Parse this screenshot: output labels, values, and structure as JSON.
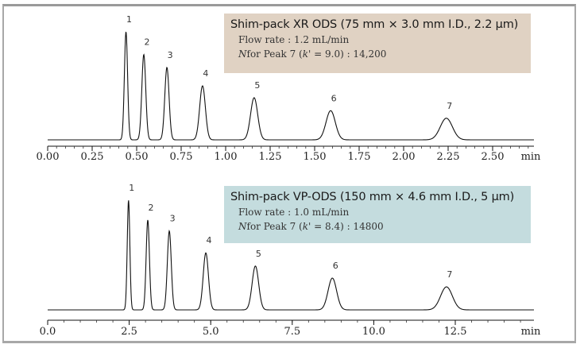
{
  "chart_data": [
    {
      "type": "line",
      "title": "Shim-pack XR ODS (75 mm × 3.0 mm I.D., 2.2 µm)",
      "info_lines": {
        "flow_rate": "Flow rate : 1.2 mL/min",
        "n_prefix": "N",
        "n_mid": "for Peak 7 (",
        "k_symbol": "k'",
        "n_suffix": " = 9.0) : 14,200"
      },
      "xlabel": "min",
      "xlim": [
        0.0,
        2.6
      ],
      "x_ticks": [
        "0.00",
        "0.25",
        "0.50",
        "0.75",
        "1.00",
        "1.25",
        "1.50",
        "1.75",
        "2.00",
        "2.25",
        "2.50"
      ],
      "x_tick_values": [
        0.0,
        0.25,
        0.5,
        0.75,
        1.0,
        1.25,
        1.5,
        1.75,
        2.0,
        2.25,
        2.5
      ],
      "minor_tick_step": 0.05,
      "peaks": [
        {
          "label": "1",
          "rt": 0.44,
          "height": 1.0,
          "width": 0.009
        },
        {
          "label": "2",
          "rt": 0.54,
          "height": 0.79,
          "width": 0.011
        },
        {
          "label": "3",
          "rt": 0.67,
          "height": 0.67,
          "width": 0.012
        },
        {
          "label": "4",
          "rt": 0.87,
          "height": 0.5,
          "width": 0.016
        },
        {
          "label": "5",
          "rt": 1.16,
          "height": 0.39,
          "width": 0.02
        },
        {
          "label": "6",
          "rt": 1.59,
          "height": 0.27,
          "width": 0.026
        },
        {
          "label": "7",
          "rt": 2.24,
          "height": 0.2,
          "width": 0.034
        }
      ],
      "grid": false,
      "box_color": "#e0d2c3"
    },
    {
      "type": "line",
      "title": "Shim-pack VP-ODS (150 mm × 4.6 mm I.D., 5 µm)",
      "info_lines": {
        "flow_rate": "Flow rate : 1.0 mL/min",
        "n_prefix": "N",
        "n_mid": "for Peak 7 (",
        "k_symbol": "k'",
        "n_suffix": " = 8.4) : 14800"
      },
      "xlabel": "min",
      "xlim": [
        0.0,
        15.0
      ],
      "x_ticks": [
        "0.0",
        "2.5",
        "5.0",
        "7.5",
        "10.0",
        "12.5"
      ],
      "x_tick_values": [
        0.0,
        2.5,
        5.0,
        7.5,
        10.0,
        12.5
      ],
      "minor_tick_step": 0.5,
      "peaks": [
        {
          "label": "1",
          "rt": 2.48,
          "height": 1.0,
          "width": 0.04
        },
        {
          "label": "2",
          "rt": 3.07,
          "height": 0.82,
          "width": 0.05
        },
        {
          "label": "3",
          "rt": 3.73,
          "height": 0.72,
          "width": 0.06
        },
        {
          "label": "4",
          "rt": 4.85,
          "height": 0.52,
          "width": 0.08
        },
        {
          "label": "5",
          "rt": 6.37,
          "height": 0.4,
          "width": 0.1
        },
        {
          "label": "6",
          "rt": 8.73,
          "height": 0.29,
          "width": 0.13
        },
        {
          "label": "7",
          "rt": 12.23,
          "height": 0.21,
          "width": 0.18
        }
      ],
      "grid": false,
      "box_color": "#c4dcde"
    }
  ]
}
